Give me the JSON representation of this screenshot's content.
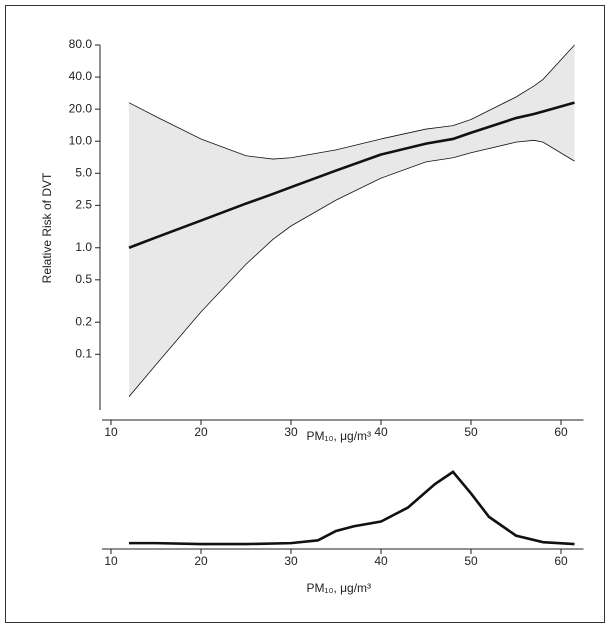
{
  "chart_data": [
    {
      "type": "band_line",
      "ylabel": "Relative Risk of DVT",
      "xlabel": "PM₁₀, μg/m³",
      "log_y": true,
      "x": [
        12,
        15,
        20,
        25,
        28,
        30,
        35,
        40,
        45,
        48,
        50,
        55,
        57,
        58,
        61.5
      ],
      "values": [
        1.0,
        1.25,
        1.8,
        2.6,
        3.2,
        3.7,
        5.3,
        7.5,
        9.5,
        10.5,
        12,
        16.5,
        18,
        19,
        23
      ],
      "ci_lower": [
        0.04,
        0.08,
        0.25,
        0.7,
        1.2,
        1.6,
        2.8,
        4.5,
        6.4,
        7,
        7.8,
        9.8,
        10.2,
        9.8,
        6.5
      ],
      "ci_upper": [
        23,
        17,
        10.5,
        7.3,
        6.8,
        7,
        8.3,
        10.5,
        13,
        14,
        16,
        26,
        33,
        38,
        80
      ],
      "color": "#111",
      "band_color": "#e8e8e8",
      "xlim": [
        9,
        62.5
      ],
      "xticks": [
        10,
        20,
        30,
        40,
        50,
        60
      ],
      "ylim": [
        0.03,
        80
      ],
      "yticks": [
        {
          "value": 80,
          "label": "80.0"
        },
        {
          "value": 40,
          "label": "40.0"
        },
        {
          "value": 20,
          "label": "20.0"
        },
        {
          "value": 10,
          "label": "10.0"
        },
        {
          "value": 5,
          "label": "5.0"
        },
        2.5,
        {
          "value": 1,
          "label": "1.0"
        },
        0.5,
        0.2,
        0.1
      ]
    },
    {
      "type": "density",
      "xlabel": "PM₁₀, μg/m³",
      "x": [
        12,
        15,
        20,
        25,
        30,
        33,
        35,
        37,
        40,
        43,
        46,
        48,
        50,
        52,
        55,
        58,
        61.5
      ],
      "values": [
        0.02,
        0.02,
        0.01,
        0.01,
        0.02,
        0.05,
        0.15,
        0.2,
        0.25,
        0.4,
        0.65,
        0.78,
        0.55,
        0.3,
        0.1,
        0.03,
        0.01
      ],
      "color": "#111",
      "xlim": [
        9,
        62.5
      ],
      "ylim": [
        0,
        0.8
      ],
      "xticks": [
        10,
        20,
        30,
        40,
        50,
        60
      ]
    }
  ]
}
